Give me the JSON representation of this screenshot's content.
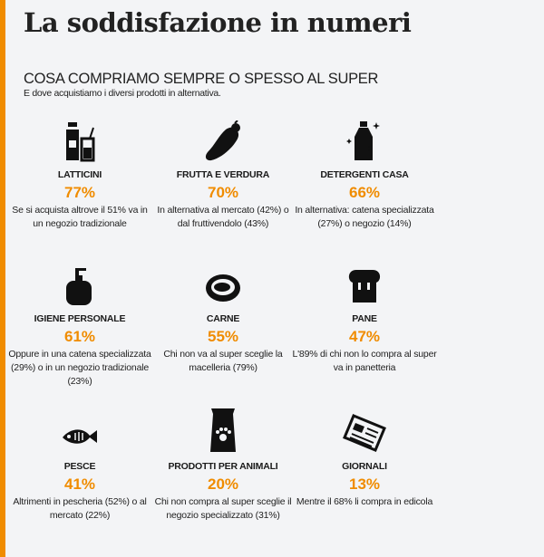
{
  "title": "La soddisfazione in numeri",
  "subtitle": "COSA COMPRIAMO SEMPRE O SPESSO AL SUPER",
  "intro": "E dove acquistiamo i diversi prodotti in alternativa.",
  "accent": "#f08c00",
  "items": [
    {
      "icon": "milk-bottle-glass-icon",
      "label": "LATTICINI",
      "pct": "77%",
      "desc": "Se si acquista altrove il 51% va in un negozio tradizionale"
    },
    {
      "icon": "eggplant-icon",
      "label": "FRUTTA E VERDURA",
      "pct": "70%",
      "desc": "In alternativa al mercato (42%) o dal fruttivendolo (43%)"
    },
    {
      "icon": "detergent-bottle-icon",
      "label": "DETERGENTI CASA",
      "pct": "66%",
      "desc": "In alternativa: catena specializzata (27%) o negozio (14%)"
    },
    {
      "icon": "soap-dispenser-icon",
      "label": "IGIENE PERSONALE",
      "pct": "61%",
      "desc": "Oppure in una catena specializzata (29%) o in un negozio tradizionale (23%)"
    },
    {
      "icon": "steak-icon",
      "label": "CARNE",
      "pct": "55%",
      "desc": "Chi non va al super sceglie la macelleria (79%)"
    },
    {
      "icon": "bread-icon",
      "label": "PANE",
      "pct": "47%",
      "desc": "L'89% di chi non lo compra al super va in panetteria"
    },
    {
      "icon": "fish-icon",
      "label": "PESCE",
      "pct": "41%",
      "desc": "Altrimenti in pescheria (52%) o al mercato (22%)"
    },
    {
      "icon": "pet-food-bag-icon",
      "label": "PRODOTTI PER ANIMALI",
      "pct": "20%",
      "desc": "Chi non compra al super sceglie il negozio specializzato (31%)"
    },
    {
      "icon": "newspaper-icon",
      "label": "GIORNALI",
      "pct": "13%",
      "desc": "Mentre il 68% li compra in edicola"
    }
  ]
}
